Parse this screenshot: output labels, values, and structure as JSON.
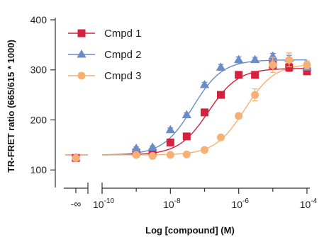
{
  "chart_data": {
    "type": "scatter",
    "title": "",
    "xlabel": "Log [compound] (M)",
    "ylabel": "TR-FRET ratio (665/615 * 1000)",
    "xscale": "log",
    "xlim": [
      1e-10,
      0.0001
    ],
    "ylim": [
      65,
      400
    ],
    "yticks": [
      100,
      200,
      300,
      400
    ],
    "ytick_labels": [
      "100",
      "200",
      "300",
      "400"
    ],
    "xtick_labels": [
      {
        "base": "10",
        "exp": "-10"
      },
      {
        "base": "10",
        "exp": "-8"
      },
      {
        "base": "10",
        "exp": "-6"
      },
      {
        "base": "10",
        "exp": "-4"
      }
    ],
    "xtick_values": [
      1e-10,
      1e-08,
      1e-06,
      0.0001
    ],
    "x_break_label": "-∞",
    "x_break_position": "left",
    "legend_position": "top-left",
    "grid": false,
    "series": [
      {
        "name": "Cmpd 1",
        "color": "#d4213d",
        "marker": "square",
        "zero_value": 124,
        "x": [
          1e-09,
          3e-09,
          1e-08,
          3e-08,
          1e-07,
          3e-07,
          1e-06,
          3e-06,
          1e-05,
          3e-05,
          0.0001
        ],
        "y": [
          135,
          135,
          155,
          167,
          215,
          250,
          290,
          290,
          310,
          305,
          297
        ],
        "err": [
          3,
          3,
          4,
          4,
          5,
          5,
          5,
          5,
          6,
          8,
          6
        ],
        "fit": {
          "bottom": 130,
          "top": 303,
          "ec50": 1.3e-07,
          "hill": 1.0
        }
      },
      {
        "name": "Cmpd 2",
        "color": "#6a8cc8",
        "marker": "triangle",
        "zero_value": 124,
        "x": [
          1e-09,
          3e-09,
          1e-08,
          3e-08,
          1e-07,
          3e-07,
          1e-06,
          3e-06,
          1e-05,
          3e-05,
          0.0001
        ],
        "y": [
          143,
          145,
          180,
          210,
          270,
          305,
          320,
          320,
          327,
          322,
          305
        ],
        "err": [
          3,
          3,
          4,
          4,
          5,
          6,
          6,
          5,
          6,
          7,
          6
        ],
        "fit": {
          "bottom": 130,
          "top": 320,
          "ec50": 4.5e-08,
          "hill": 1.0
        }
      },
      {
        "name": "Cmpd 3",
        "color": "#f5b175",
        "marker": "circle",
        "zero_value": 124,
        "x": [
          1e-09,
          3e-09,
          1e-08,
          3e-08,
          1e-07,
          3e-07,
          1e-06,
          3e-06,
          1e-05,
          3e-05,
          0.0001
        ],
        "y": [
          130,
          128,
          130,
          131,
          140,
          165,
          208,
          250,
          310,
          320,
          310
        ],
        "err": [
          2,
          2,
          2,
          2,
          3,
          4,
          5,
          12,
          15,
          14,
          8
        ],
        "fit": {
          "bottom": 130,
          "top": 312,
          "ec50": 1.5e-06,
          "hill": 1.0
        }
      }
    ]
  }
}
